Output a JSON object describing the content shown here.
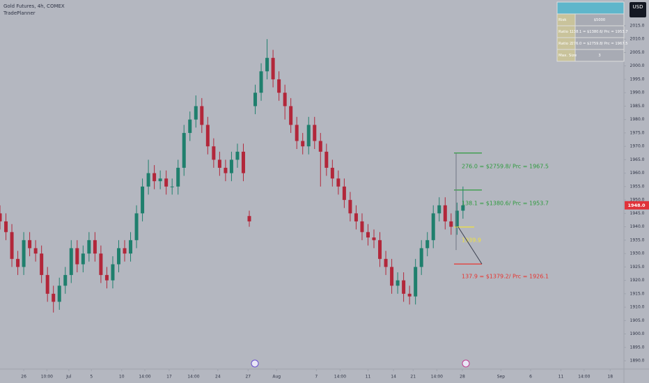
{
  "chart_data": {
    "type": "candlestick",
    "title": "Gold Futures, 4h, COMEX",
    "subtitle": "TradePlanner",
    "currency": "USD",
    "up_color": "#1f7f6d",
    "down_color": "#b2273a",
    "open": [
      1945,
      1942,
      1938,
      1928,
      1925,
      1935,
      1932,
      1930,
      1922,
      1915,
      1912,
      1918,
      1922,
      1932,
      1926,
      1930,
      1935,
      1930,
      1922,
      1920,
      1926,
      1932,
      1930,
      1935,
      1945,
      1955,
      1960,
      1957,
      1958,
      1955,
      1955,
      1962,
      1975,
      1980,
      1985,
      1978,
      1970,
      1965,
      1962,
      1960,
      1965,
      1968,
      1944,
      1985,
      1990,
      1998,
      2003,
      1995,
      1990,
      1985,
      1978,
      1972,
      1970,
      1978,
      1972,
      1968,
      1962,
      1958,
      1955,
      1950,
      1945,
      1942,
      1938,
      1936,
      1935,
      1928,
      1925,
      1918,
      1920,
      1915,
      1914,
      1925,
      1932,
      1935,
      1945,
      1948,
      1942,
      1940,
      1946
    ],
    "high": [
      1948,
      1945,
      1941,
      1931,
      1938,
      1938,
      1935,
      1933,
      1925,
      1918,
      1921,
      1925,
      1935,
      1935,
      1933,
      1938,
      1938,
      1933,
      1925,
      1929,
      1935,
      1935,
      1938,
      1948,
      1958,
      1965,
      1963,
      1961,
      1961,
      1958,
      1965,
      1978,
      1983,
      1989,
      1988,
      1981,
      1973,
      1968,
      1965,
      1968,
      1971,
      1971,
      1946,
      1993,
      2001,
      2010,
      2006,
      1998,
      1993,
      1988,
      1981,
      1975,
      1981,
      1981,
      1975,
      1971,
      1965,
      1961,
      1958,
      1953,
      1948,
      1945,
      1941,
      1939,
      1938,
      1931,
      1928,
      1923,
      1923,
      1918,
      1928,
      1935,
      1938,
      1948,
      1951,
      1951,
      1945,
      1949,
      1955
    ],
    "low": [
      1939,
      1935,
      1925,
      1922,
      1922,
      1929,
      1927,
      1919,
      1912,
      1908,
      1909,
      1915,
      1919,
      1923,
      1923,
      1927,
      1927,
      1919,
      1917,
      1917,
      1923,
      1927,
      1927,
      1932,
      1942,
      1952,
      1954,
      1954,
      1952,
      1952,
      1952,
      1959,
      1972,
      1977,
      1975,
      1967,
      1962,
      1959,
      1957,
      1957,
      1962,
      1957,
      1940,
      1982,
      1987,
      1995,
      1992,
      1987,
      1980,
      1975,
      1969,
      1967,
      1967,
      1969,
      1955,
      1959,
      1955,
      1952,
      1947,
      1942,
      1939,
      1935,
      1933,
      1932,
      1925,
      1922,
      1915,
      1915,
      1912,
      1911,
      1911,
      1922,
      1929,
      1932,
      1942,
      1939,
      1937,
      1937,
      1943
    ],
    "close": [
      1942,
      1938,
      1928,
      1925,
      1935,
      1932,
      1930,
      1922,
      1915,
      1912,
      1918,
      1922,
      1932,
      1926,
      1930,
      1935,
      1930,
      1922,
      1920,
      1926,
      1932,
      1930,
      1935,
      1945,
      1955,
      1960,
      1957,
      1958,
      1955,
      1955,
      1962,
      1975,
      1980,
      1985,
      1978,
      1970,
      1965,
      1962,
      1960,
      1965,
      1968,
      1960,
      1942,
      1990,
      1998,
      2003,
      1995,
      1990,
      1985,
      1978,
      1972,
      1970,
      1978,
      1972,
      1968,
      1962,
      1958,
      1955,
      1950,
      1945,
      1942,
      1938,
      1936,
      1935,
      1928,
      1925,
      1918,
      1920,
      1915,
      1914,
      1925,
      1932,
      1935,
      1945,
      1948,
      1942,
      1940,
      1946,
      1948
    ],
    "xlim": [
      0,
      105
    ],
    "xticks": [
      {
        "value": 4.0,
        "label": "26"
      },
      {
        "value": 7.9,
        "label": "10:00"
      },
      {
        "value": 11.6,
        "label": "Jul"
      },
      {
        "value": 15.4,
        "label": "5"
      },
      {
        "value": 20.5,
        "label": "10"
      },
      {
        "value": 24.4,
        "label": "14:00"
      },
      {
        "value": 28.5,
        "label": "17"
      },
      {
        "value": 32.6,
        "label": "14:00"
      },
      {
        "value": 36.7,
        "label": "24"
      },
      {
        "value": 41.8,
        "label": "27"
      },
      {
        "value": 46.6,
        "label": "Aug"
      },
      {
        "value": 53.3,
        "label": "7"
      },
      {
        "value": 57.3,
        "label": "14:00"
      },
      {
        "value": 62.0,
        "label": "11"
      },
      {
        "value": 66.3,
        "label": "14"
      },
      {
        "value": 69.6,
        "label": "21"
      },
      {
        "value": 73.6,
        "label": "14:00"
      },
      {
        "value": 77.9,
        "label": "28"
      },
      {
        "value": 84.4,
        "label": "Sep"
      },
      {
        "value": 89.4,
        "label": "6"
      },
      {
        "value": 94.5,
        "label": "11"
      },
      {
        "value": 98.4,
        "label": "14:00"
      },
      {
        "value": 102.8,
        "label": "18"
      }
    ],
    "ylim": [
      1886.9,
      2024.6
    ],
    "yticks": [
      {
        "value": 1890,
        "label": "1890.0"
      },
      {
        "value": 1895,
        "label": "1895.0"
      },
      {
        "value": 1900,
        "label": "1900.0"
      },
      {
        "value": 1905,
        "label": "1905.0"
      },
      {
        "value": 1910,
        "label": "1910.0"
      },
      {
        "value": 1915,
        "label": "1915.0"
      },
      {
        "value": 1920,
        "label": "1920.0"
      },
      {
        "value": 1925,
        "label": "1925.0"
      },
      {
        "value": 1930,
        "label": "1930.0"
      },
      {
        "value": 1935,
        "label": "1935.0"
      },
      {
        "value": 1940,
        "label": "1940.0"
      },
      {
        "value": 1945,
        "label": "1945.0"
      },
      {
        "value": 1950,
        "label": "1950.0"
      },
      {
        "value": 1955,
        "label": "1955.0"
      },
      {
        "value": 1960,
        "label": "1960.0"
      },
      {
        "value": 1965,
        "label": "1965.0"
      },
      {
        "value": 1970,
        "label": "1970.0"
      },
      {
        "value": 1975,
        "label": "1975.0"
      },
      {
        "value": 1980,
        "label": "1980.0"
      },
      {
        "value": 1985,
        "label": "1985.0"
      },
      {
        "value": 1990,
        "label": "1990.0"
      },
      {
        "value": 1995,
        "label": "1995.0"
      },
      {
        "value": 2000,
        "label": "2000.0"
      },
      {
        "value": 2005,
        "label": "2005.0"
      },
      {
        "value": 2010,
        "label": "2010.0"
      },
      {
        "value": 2015,
        "label": "2015.0"
      }
    ],
    "last_price": {
      "value": 1948,
      "label": "1948.0"
    },
    "levels": [
      {
        "price": 1967.5,
        "label": "276.0 = $2759.8/ Prc = 1967.5",
        "color": "#2e9b3e"
      },
      {
        "price": 1953.7,
        "label": "138.1 = $1380.6/ Prc = 1953.7",
        "color": "#2e9b3e"
      },
      {
        "price": 1939.9,
        "label": "1939.9",
        "color": "#f2e33a"
      },
      {
        "price": 1926.1,
        "label": "137.9 = $1379.2/ Prc = 1926.1",
        "color": "#e8332e"
      }
    ]
  },
  "table": {
    "rows": [
      [
        "Risk",
        "$5000"
      ],
      [
        "Ratio 1",
        "138.1 = $1380.6/ Prc = 1953.7"
      ],
      [
        "Ratio 2",
        "276.0 = $2759.8/ Prc = 1967.5"
      ],
      [
        "Max. Size",
        "3"
      ]
    ]
  }
}
